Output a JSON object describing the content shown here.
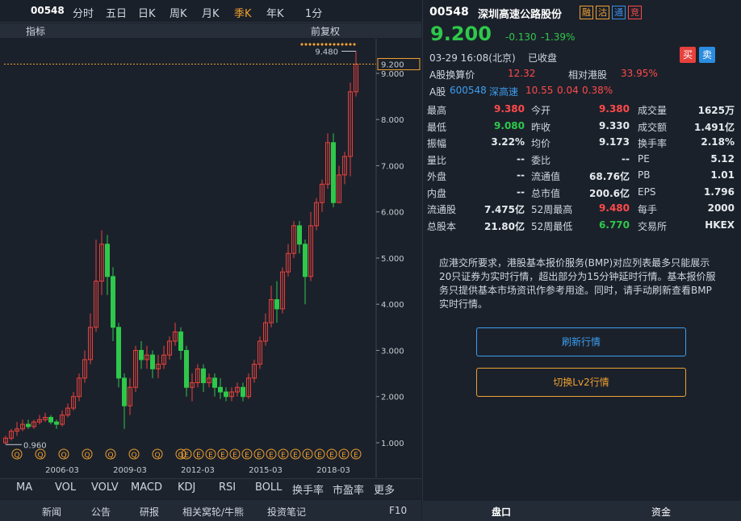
{
  "toolbar": {
    "code": "00548",
    "periods": [
      "分时",
      "五日",
      "日K",
      "周K",
      "月K",
      "季K",
      "年K",
      "1分"
    ],
    "active": 5,
    "indicator": "指标",
    "adjust": "前复权"
  },
  "chart_data": {
    "type": "candlestick",
    "categories": [
      null,
      null,
      null,
      null,
      null,
      null,
      null,
      null,
      null,
      null,
      "2006-03",
      null,
      null,
      null,
      null,
      null,
      null,
      null,
      null,
      null,
      null,
      null,
      "2009-03",
      null,
      null,
      null,
      null,
      null,
      null,
      null,
      null,
      null,
      null,
      null,
      "2012-03",
      null,
      null,
      null,
      null,
      null,
      null,
      null,
      null,
      null,
      null,
      null,
      "2015-03",
      null,
      null,
      null,
      null,
      null,
      null,
      null,
      null,
      null,
      null,
      null,
      "2018-03",
      null,
      null,
      null,
      null
    ],
    "open": [
      1.0,
      1.1,
      1.25,
      1.3,
      1.4,
      1.35,
      1.45,
      1.5,
      1.55,
      1.45,
      1.4,
      1.6,
      1.75,
      2.0,
      2.4,
      2.8,
      3.5,
      4.5,
      5.3,
      4.6,
      3.5,
      2.4,
      1.8,
      2.2,
      3.0,
      2.8,
      2.9,
      2.6,
      2.7,
      2.9,
      3.2,
      3.4,
      3.0,
      2.2,
      2.3,
      2.6,
      2.3,
      2.4,
      2.2,
      2.1,
      2.0,
      2.1,
      2.2,
      2.0,
      2.4,
      2.7,
      3.2,
      3.6,
      4.1,
      3.9,
      4.7,
      5.1,
      5.7,
      5.3,
      4.6,
      5.7,
      6.2,
      6.6,
      7.5,
      6.2,
      6.8,
      7.2,
      8.6
    ],
    "close": [
      1.1,
      1.25,
      1.3,
      1.4,
      1.35,
      1.45,
      1.5,
      1.55,
      1.45,
      1.4,
      1.6,
      1.75,
      2.0,
      2.4,
      2.8,
      3.5,
      4.5,
      5.3,
      4.6,
      3.5,
      2.4,
      1.8,
      2.2,
      3.0,
      2.8,
      2.9,
      2.6,
      2.7,
      2.9,
      3.2,
      3.4,
      3.0,
      2.2,
      2.3,
      2.6,
      2.3,
      2.4,
      2.2,
      2.1,
      2.0,
      2.1,
      2.2,
      2.0,
      2.4,
      2.7,
      3.2,
      3.6,
      4.1,
      3.9,
      4.7,
      5.1,
      5.7,
      5.3,
      4.6,
      5.7,
      6.2,
      6.6,
      7.5,
      6.2,
      6.8,
      7.2,
      8.6,
      9.2
    ],
    "high": [
      1.15,
      1.3,
      1.45,
      1.5,
      1.5,
      1.5,
      1.6,
      1.65,
      1.6,
      1.5,
      1.7,
      1.85,
      2.1,
      2.5,
      3.0,
      3.8,
      5.4,
      5.6,
      5.5,
      4.8,
      3.6,
      2.5,
      2.4,
      3.1,
      3.2,
      3.1,
      3.0,
      2.9,
      3.1,
      3.3,
      3.6,
      3.5,
      3.1,
      2.5,
      2.7,
      2.7,
      2.5,
      2.5,
      2.4,
      2.2,
      2.2,
      2.3,
      2.3,
      2.5,
      2.8,
      3.3,
      3.8,
      4.4,
      4.5,
      4.8,
      5.3,
      5.8,
      5.8,
      5.4,
      6.0,
      6.3,
      6.7,
      7.7,
      7.7,
      7.0,
      7.3,
      8.8,
      9.48
    ],
    "low": [
      0.96,
      1.05,
      1.15,
      1.25,
      1.3,
      1.3,
      1.4,
      1.45,
      1.4,
      1.3,
      1.35,
      1.55,
      1.7,
      1.9,
      2.3,
      2.7,
      3.4,
      4.2,
      4.2,
      3.2,
      2.2,
      1.3,
      1.6,
      2.1,
      2.6,
      2.6,
      2.4,
      2.4,
      2.6,
      2.8,
      3.1,
      2.8,
      2.0,
      1.9,
      2.2,
      2.1,
      2.2,
      2.0,
      1.95,
      1.9,
      1.9,
      2.0,
      1.9,
      1.95,
      2.3,
      2.6,
      3.1,
      3.5,
      3.6,
      3.8,
      4.6,
      5.0,
      5.1,
      4.0,
      4.5,
      5.6,
      6.0,
      6.5,
      6.1,
      6.2,
      6.6,
      6.77,
      8.5
    ],
    "up_color": "#e8413c",
    "down_color": "#2ec84a",
    "ylim": [
      0.72,
      9.75
    ],
    "yticks": [
      {
        "value": 1,
        "label": "1.000"
      },
      {
        "value": 2,
        "label": "2.000"
      },
      {
        "value": 3,
        "label": "3.000"
      },
      {
        "value": 4,
        "label": "4.000"
      },
      {
        "value": 5,
        "label": "5.000"
      },
      {
        "value": 6,
        "label": "6.000"
      },
      {
        "value": 7,
        "label": "7.000"
      },
      {
        "value": 8,
        "label": "8.000"
      },
      {
        "value": 9,
        "label": "9.000"
      }
    ],
    "last_price": 9.2,
    "last_price_label": "9.200",
    "high_label": "9.480",
    "low_label": "0.960",
    "event_markers": [
      "Q",
      "Q",
      "Q",
      "Q",
      "Q",
      "Q",
      "Q",
      "Q",
      "E",
      "E",
      "E",
      "E",
      "E",
      "E",
      "E",
      "E",
      "E",
      "E",
      "E",
      "E",
      "E",
      "E",
      "E"
    ]
  },
  "indicators": [
    "MA",
    "VOL",
    "VOLV",
    "MACD",
    "KDJ",
    "RSI",
    "BOLL",
    "换手率",
    "市盈率",
    "更多"
  ],
  "bottom_tabs": [
    "新闻",
    "公告",
    "研报",
    "相关窝轮/牛熊",
    "投资笔记",
    "F10"
  ],
  "side_tabs": [
    "盘口",
    "资金"
  ],
  "quote": {
    "code": "00548",
    "name": "深圳高速公路股份",
    "badges": [
      "融",
      "沽",
      "通",
      "竞"
    ],
    "price": "9.200",
    "change": "-0.130",
    "change_pct": "-1.39%",
    "time": "03-29 16:08(北京)",
    "status": "已收盘",
    "buy": "买",
    "sell": "卖"
  },
  "a_share": {
    "conv_label": "A股换算价",
    "conv_price": "12.32",
    "prem_label": "相对港股",
    "premium": "33.95%",
    "label": "A股",
    "code": "600548",
    "name": "深高速",
    "price": "10.55",
    "change": "0.04",
    "change_pct": "0.38%"
  },
  "stats": [
    [
      {
        "label": "最高",
        "value": "9.380",
        "color": "#ff4a4a"
      },
      {
        "label": "今开",
        "value": "9.380",
        "color": "#ff4a4a"
      },
      {
        "label": "成交量",
        "value": "1625万"
      }
    ],
    [
      {
        "label": "最低",
        "value": "9.080",
        "color": "#2ec84a"
      },
      {
        "label": "昨收",
        "value": "9.330"
      },
      {
        "label": "成交额",
        "value": "1.491亿"
      }
    ],
    [
      {
        "label": "振幅",
        "value": "3.22%"
      },
      {
        "label": "均价",
        "value": "9.173"
      },
      {
        "label": "换手率",
        "value": "2.18%"
      }
    ],
    [
      {
        "label": "量比",
        "value": "--"
      },
      {
        "label": "委比",
        "value": "--"
      },
      {
        "label": "PE",
        "value": "5.12"
      }
    ],
    [
      {
        "label": "外盘",
        "value": "--"
      },
      {
        "label": "流通值",
        "value": "68.76亿"
      },
      {
        "label": "PB",
        "value": "1.01"
      }
    ],
    [
      {
        "label": "内盘",
        "value": "--"
      },
      {
        "label": "总市值",
        "value": "200.6亿"
      },
      {
        "label": "EPS",
        "value": "1.796"
      }
    ],
    [
      {
        "label": "流通股",
        "value": "7.475亿"
      },
      {
        "label": "52周最高",
        "value": "9.480",
        "color": "#ff4a4a"
      },
      {
        "label": "每手",
        "value": "2000"
      }
    ],
    [
      {
        "label": "总股本",
        "value": "21.80亿"
      },
      {
        "label": "52周最低",
        "value": "6.770",
        "color": "#2ec84a"
      },
      {
        "label": "交易所",
        "value": "HKEX"
      }
    ]
  ],
  "notice": "应港交所要求，港股基本报价服务(BMP)对应列表最多只能展示20只证券为实时行情，超出部分为15分钟延时行情。基本报价服务只提供基本市场资讯作参考用途。同时，请手动刷新查看BMP实时行情。",
  "buttons": [
    "刷新行情",
    "切换Lv2行情"
  ]
}
